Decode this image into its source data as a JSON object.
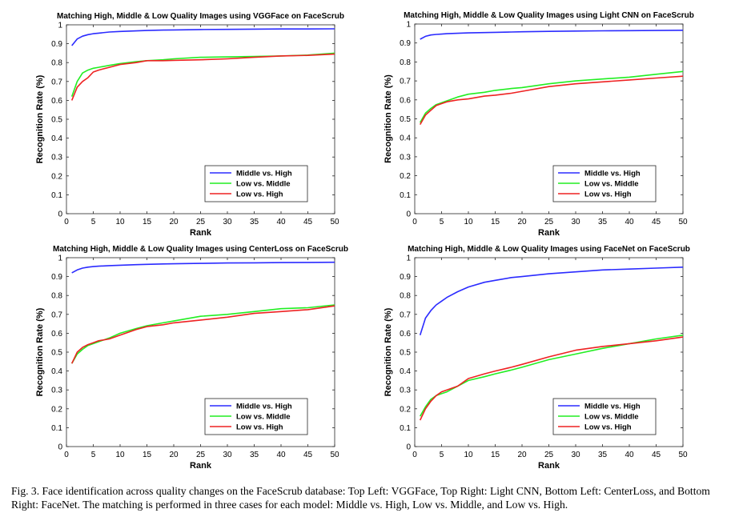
{
  "caption": "Fig. 3.   Face identification across quality changes on the FaceScrub database: Top Left: VGGFace, Top Right: Light CNN, Bottom Left: CenterLoss, and Bottom Right: FaceNet. The matching is performed in three cases for each model: Middle vs. High, Low vs. Middle, and Low vs. High.",
  "colors": {
    "middle_vs_high": "#2b2bff",
    "low_vs_middle": "#22ee22",
    "low_vs_high": "#ee2222"
  },
  "chart_data": [
    {
      "type": "line",
      "title": "Matching High, Middle & Low Quality Images using VGGFace on FaceScrub",
      "xlabel": "Rank",
      "ylabel": "Recognition Rate (%)",
      "xlim": [
        0,
        50
      ],
      "ylim": [
        0,
        1
      ],
      "xticks": [
        "0",
        "5",
        "10",
        "15",
        "20",
        "25",
        "30",
        "35",
        "40",
        "45",
        "50"
      ],
      "yticks": [
        "0",
        "0.1",
        "0.2",
        "0.3",
        "0.4",
        "0.5",
        "0.6",
        "0.7",
        "0.8",
        "0.9",
        "1"
      ],
      "legend_position": "lower-right",
      "grid": false,
      "x": [
        1,
        2,
        3,
        4,
        5,
        6,
        8,
        10,
        13,
        15,
        18,
        20,
        25,
        30,
        35,
        40,
        45,
        50
      ],
      "series": [
        {
          "name": "Middle vs. High",
          "color": "#2b2bff",
          "values": [
            0.89,
            0.925,
            0.94,
            0.948,
            0.953,
            0.956,
            0.962,
            0.965,
            0.968,
            0.97,
            0.972,
            0.973,
            0.975,
            0.976,
            0.977,
            0.978,
            0.978,
            0.979
          ]
        },
        {
          "name": "Low vs. Middle",
          "color": "#22ee22",
          "values": [
            0.62,
            0.7,
            0.745,
            0.76,
            0.77,
            0.775,
            0.785,
            0.795,
            0.805,
            0.81,
            0.815,
            0.82,
            0.828,
            0.83,
            0.832,
            0.835,
            0.84,
            0.85
          ]
        },
        {
          "name": "Low vs. High",
          "color": "#ee2222",
          "values": [
            0.6,
            0.67,
            0.7,
            0.72,
            0.75,
            0.76,
            0.775,
            0.79,
            0.8,
            0.81,
            0.81,
            0.812,
            0.815,
            0.82,
            0.828,
            0.835,
            0.838,
            0.845
          ]
        }
      ]
    },
    {
      "type": "line",
      "title": "Matching High, Middle & Low Quality Images using Light CNN on FaceScrub",
      "xlabel": "Rank",
      "ylabel": "Recognition Rate (%)",
      "xlim": [
        0,
        50
      ],
      "ylim": [
        0,
        1
      ],
      "xticks": [
        "0",
        "5",
        "10",
        "15",
        "20",
        "25",
        "30",
        "35",
        "40",
        "45",
        "50"
      ],
      "yticks": [
        "0",
        "0.1",
        "0.2",
        "0.3",
        "0.4",
        "0.5",
        "0.6",
        "0.7",
        "0.8",
        "0.9",
        "1"
      ],
      "legend_position": "lower-right",
      "grid": false,
      "x": [
        1,
        2,
        3,
        4,
        5,
        6,
        8,
        10,
        13,
        15,
        18,
        20,
        25,
        30,
        35,
        40,
        45,
        50
      ],
      "series": [
        {
          "name": "Middle vs. High",
          "color": "#2b2bff",
          "values": [
            0.92,
            0.935,
            0.942,
            0.945,
            0.947,
            0.949,
            0.951,
            0.953,
            0.955,
            0.956,
            0.958,
            0.959,
            0.961,
            0.963,
            0.964,
            0.965,
            0.966,
            0.967
          ]
        },
        {
          "name": "Low vs. Middle",
          "color": "#22ee22",
          "values": [
            0.48,
            0.53,
            0.555,
            0.575,
            0.585,
            0.595,
            0.615,
            0.63,
            0.64,
            0.65,
            0.66,
            0.665,
            0.685,
            0.7,
            0.71,
            0.72,
            0.735,
            0.75
          ]
        },
        {
          "name": "Low vs. High",
          "color": "#ee2222",
          "values": [
            0.47,
            0.52,
            0.545,
            0.57,
            0.58,
            0.59,
            0.6,
            0.605,
            0.62,
            0.625,
            0.635,
            0.645,
            0.67,
            0.685,
            0.695,
            0.705,
            0.715,
            0.725
          ]
        }
      ]
    },
    {
      "type": "line",
      "title": "Matching High, Middle & Low Quality Images using CenterLoss on FaceScrub",
      "xlabel": "Rank",
      "ylabel": "Recognition Rate (%)",
      "xlim": [
        0,
        50
      ],
      "ylim": [
        0,
        1
      ],
      "xticks": [
        "0",
        "5",
        "10",
        "15",
        "20",
        "25",
        "30",
        "35",
        "40",
        "45",
        "50"
      ],
      "yticks": [
        "0",
        "0.1",
        "0.2",
        "0.3",
        "0.4",
        "0.5",
        "0.6",
        "0.7",
        "0.8",
        "0.9",
        "1"
      ],
      "legend_position": "lower-right",
      "grid": false,
      "x": [
        1,
        2,
        3,
        4,
        5,
        6,
        8,
        10,
        13,
        15,
        18,
        20,
        25,
        30,
        35,
        40,
        45,
        50
      ],
      "series": [
        {
          "name": "Middle vs. High",
          "color": "#2b2bff",
          "values": [
            0.92,
            0.935,
            0.945,
            0.95,
            0.953,
            0.955,
            0.958,
            0.96,
            0.963,
            0.965,
            0.967,
            0.968,
            0.97,
            0.972,
            0.973,
            0.974,
            0.975,
            0.976
          ]
        },
        {
          "name": "Low vs. Middle",
          "color": "#22ee22",
          "values": [
            0.44,
            0.49,
            0.515,
            0.535,
            0.545,
            0.555,
            0.575,
            0.6,
            0.625,
            0.64,
            0.655,
            0.665,
            0.69,
            0.7,
            0.715,
            0.73,
            0.735,
            0.75
          ]
        },
        {
          "name": "Low vs. High",
          "color": "#ee2222",
          "values": [
            0.44,
            0.5,
            0.525,
            0.54,
            0.55,
            0.56,
            0.57,
            0.59,
            0.62,
            0.635,
            0.645,
            0.655,
            0.67,
            0.685,
            0.705,
            0.715,
            0.725,
            0.745
          ]
        }
      ]
    },
    {
      "type": "line",
      "title": "Matching High, Middle & Low Quality Images using FaceNet on FaceScrub",
      "xlabel": "Rank",
      "ylabel": "Recognition Rate (%)",
      "xlim": [
        0,
        50
      ],
      "ylim": [
        0,
        1
      ],
      "xticks": [
        "0",
        "5",
        "10",
        "15",
        "20",
        "25",
        "30",
        "35",
        "40",
        "45",
        "50"
      ],
      "yticks": [
        "0",
        "0.1",
        "0.2",
        "0.3",
        "0.4",
        "0.5",
        "0.6",
        "0.7",
        "0.8",
        "0.9",
        "1"
      ],
      "legend_position": "lower-right",
      "grid": false,
      "x": [
        1,
        2,
        3,
        4,
        5,
        6,
        8,
        10,
        13,
        15,
        18,
        20,
        25,
        30,
        35,
        40,
        45,
        50
      ],
      "series": [
        {
          "name": "Middle vs. High",
          "color": "#2b2bff",
          "values": [
            0.59,
            0.68,
            0.72,
            0.75,
            0.77,
            0.79,
            0.82,
            0.845,
            0.87,
            0.88,
            0.895,
            0.9,
            0.915,
            0.925,
            0.935,
            0.94,
            0.945,
            0.95
          ]
        },
        {
          "name": "Low vs. Middle",
          "color": "#22ee22",
          "values": [
            0.16,
            0.21,
            0.25,
            0.27,
            0.28,
            0.29,
            0.32,
            0.35,
            0.37,
            0.385,
            0.405,
            0.42,
            0.46,
            0.49,
            0.52,
            0.545,
            0.57,
            0.59
          ]
        },
        {
          "name": "Low vs. High",
          "color": "#ee2222",
          "values": [
            0.14,
            0.2,
            0.24,
            0.27,
            0.29,
            0.3,
            0.32,
            0.36,
            0.385,
            0.4,
            0.42,
            0.435,
            0.475,
            0.51,
            0.53,
            0.545,
            0.56,
            0.58
          ]
        }
      ]
    }
  ]
}
